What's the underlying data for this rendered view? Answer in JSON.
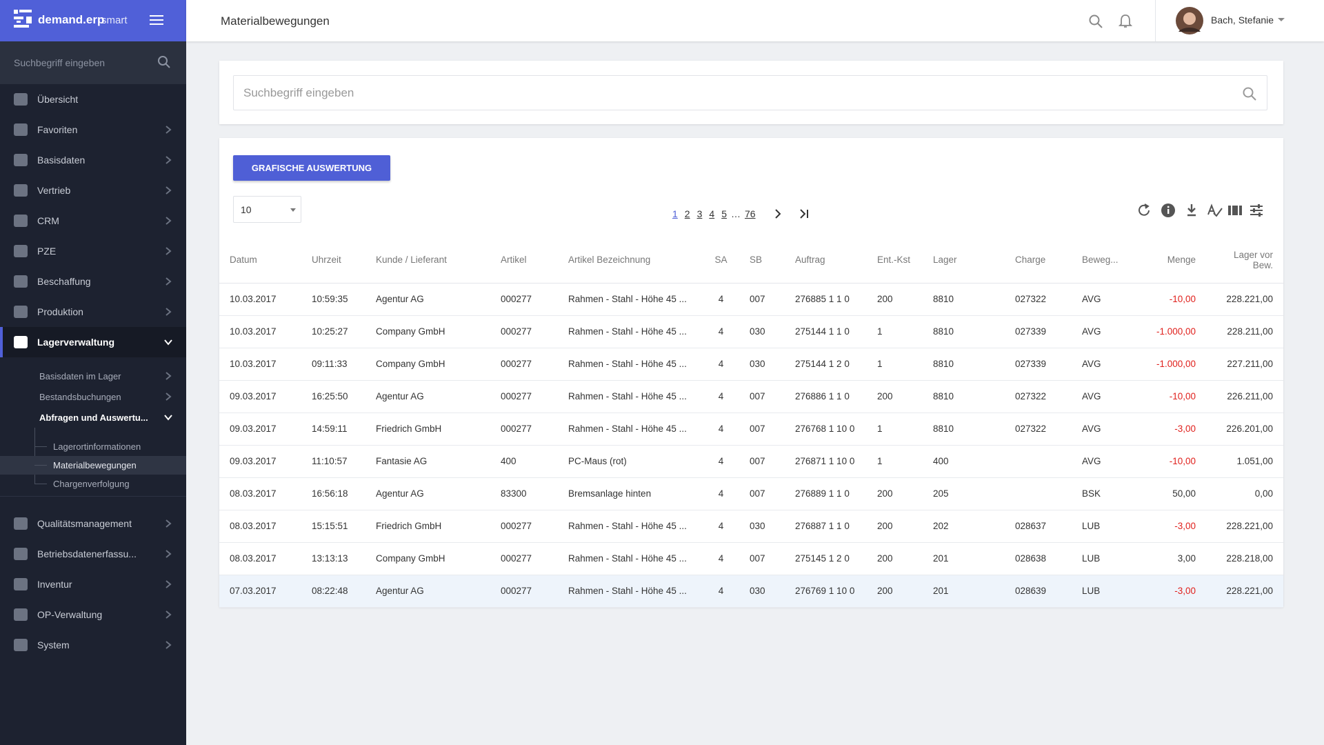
{
  "header": {
    "app_name": "demand.erp",
    "app_edition": "smart",
    "page_title": "Materialbewegungen",
    "user_name": "Bach, Stefanie"
  },
  "sidebar": {
    "search_placeholder": "Suchbegriff eingeben",
    "nav": [
      "Übersicht",
      "Favoriten",
      "Basisdaten",
      "Vertrieb",
      "CRM",
      "PZE",
      "Beschaffung",
      "Produktion",
      "Lagerverwaltung"
    ],
    "lager_sub": [
      "Basisdaten im Lager",
      "Bestandsbuchungen",
      "Abfragen und Auswertu..."
    ],
    "abfragen_sub": [
      "Lagerortinformationen",
      "Materialbewegungen",
      "Chargenverfolgung"
    ],
    "nav_bottom": [
      "Qualitätsmanagement",
      "Betriebsdatenerfassu...",
      "Inventur",
      "OP-Verwaltung",
      "System"
    ]
  },
  "search": {
    "placeholder": "Suchbegriff eingeben"
  },
  "toolbar": {
    "button": "GRAFISCHE AUSWERTUNG",
    "page_size": "10",
    "pages": [
      "1",
      "2",
      "3",
      "4",
      "5",
      "…",
      "76"
    ]
  },
  "table": {
    "columns": [
      "Datum",
      "Uhrzeit",
      "Kunde / Lieferant",
      "Artikel",
      "Artikel Bezeichnung",
      "SA",
      "SB",
      "Auftrag",
      "Ent.-Kst",
      "Lager",
      "Charge",
      "Beweg...",
      "Menge",
      "Lager vor Bew."
    ],
    "rows": [
      [
        "10.03.2017",
        "10:59:35",
        "Agentur AG",
        "000277",
        "Rahmen - Stahl - Höhe 45 ...",
        "4",
        "007",
        "276885 1 1 0",
        "200",
        "8810",
        "027322",
        "AVG",
        "-10,00",
        "228.221,00"
      ],
      [
        "10.03.2017",
        "10:25:27",
        "Company GmbH",
        "000277",
        "Rahmen - Stahl - Höhe 45 ...",
        "4",
        "030",
        "275144 1 1 0",
        "1",
        "8810",
        "027339",
        "AVG",
        "-1.000,00",
        "228.211,00"
      ],
      [
        "10.03.2017",
        "09:11:33",
        "Company GmbH",
        "000277",
        "Rahmen - Stahl - Höhe 45 ...",
        "4",
        "030",
        "275144 1 2 0",
        "1",
        "8810",
        "027339",
        "AVG",
        "-1.000,00",
        "227.211,00"
      ],
      [
        "09.03.2017",
        "16:25:50",
        "Agentur AG",
        "000277",
        "Rahmen - Stahl - Höhe 45 ...",
        "4",
        "007",
        "276886 1 1 0",
        "200",
        "8810",
        "027322",
        "AVG",
        "-10,00",
        "226.211,00"
      ],
      [
        "09.03.2017",
        "14:59:11",
        "Friedrich GmbH",
        "000277",
        "Rahmen - Stahl - Höhe 45 ...",
        "4",
        "007",
        "276768 1 10 0",
        "1",
        "8810",
        "027322",
        "AVG",
        "-3,00",
        "226.201,00"
      ],
      [
        "09.03.2017",
        "11:10:57",
        "Fantasie AG",
        "400",
        "PC-Maus (rot)",
        "4",
        "007",
        "276871 1 10 0",
        "1",
        "400",
        null,
        "AVG",
        "-10,00",
        "1.051,00"
      ],
      [
        "08.03.2017",
        "16:56:18",
        "Agentur AG",
        "83300",
        "Bremsanlage hinten",
        "4",
        "007",
        "276889 1 1 0",
        "200",
        "205",
        null,
        "BSK",
        "50,00",
        "0,00"
      ],
      [
        "08.03.2017",
        "15:15:51",
        "Friedrich GmbH",
        "000277",
        "Rahmen - Stahl - Höhe 45 ...",
        "4",
        "030",
        "276887 1 1 0",
        "200",
        "202",
        "028637",
        "LUB",
        "-3,00",
        "228.221,00"
      ],
      [
        "08.03.2017",
        "13:13:13",
        "Company GmbH",
        "000277",
        "Rahmen - Stahl - Höhe 45 ...",
        "4",
        "007",
        "275145 1 2 0",
        "200",
        "201",
        "028638",
        "LUB",
        "3,00",
        "228.218,00"
      ],
      [
        "07.03.2017",
        "08:22:48",
        "Agentur AG",
        "000277",
        "Rahmen - Stahl - Höhe 45 ...",
        "4",
        "030",
        "276769 1 10 0",
        "200",
        "201",
        "028639",
        "LUB",
        "-3,00",
        "228.221,00"
      ]
    ]
  }
}
